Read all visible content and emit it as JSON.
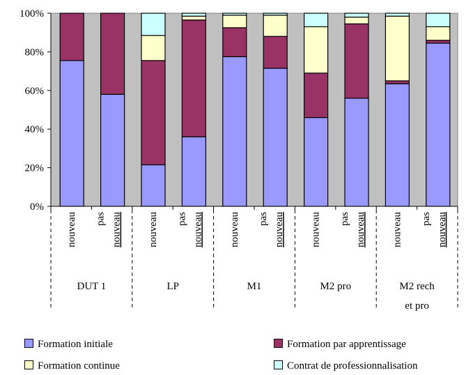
{
  "chart_data": {
    "type": "bar",
    "stacked": true,
    "title": "",
    "ylim": [
      0,
      100
    ],
    "y_ticks": [
      "0%",
      "20%",
      "40%",
      "60%",
      "80%",
      "100%"
    ],
    "plot_background": "#c0c0c0",
    "grid": false,
    "legend_position": "bottom",
    "categories": [
      {
        "group": "DUT 1",
        "sub": "nouveau"
      },
      {
        "group": "DUT 1",
        "sub": "pas nouveau"
      },
      {
        "group": "LP",
        "sub": "nouveau"
      },
      {
        "group": "LP",
        "sub": "pas nouveau"
      },
      {
        "group": "M1",
        "sub": "nouveau"
      },
      {
        "group": "M1",
        "sub": "pas nouveau"
      },
      {
        "group": "M2 pro",
        "sub": "nouveau"
      },
      {
        "group": "M2 pro",
        "sub": "pas nouveau"
      },
      {
        "group": "M2 rech et pro",
        "sub": "nouveau"
      },
      {
        "group": "M2 rech et pro",
        "sub": "pas nouveau"
      }
    ],
    "groups": [
      {
        "label_lines": [
          "DUT 1"
        ]
      },
      {
        "label_lines": [
          "LP"
        ]
      },
      {
        "label_lines": [
          "M1"
        ]
      },
      {
        "label_lines": [
          "M2 pro"
        ]
      },
      {
        "label_lines": [
          "M2 rech",
          "et pro"
        ]
      }
    ],
    "sub_labels": {
      "nouveau": "nouveau",
      "pas": "pas",
      "pas_nouveau_word": "nouveau"
    },
    "series": [
      {
        "name": "Formation initiale",
        "color": "#9999ff",
        "values": [
          75.5,
          58,
          21.5,
          36,
          77.5,
          71.5,
          46,
          56,
          63.5,
          84.5
        ]
      },
      {
        "name": "Formation par apprentissage",
        "color": "#993366",
        "values": [
          24.5,
          42,
          54,
          60.5,
          15,
          16.5,
          23,
          38.5,
          1.5,
          1.5
        ]
      },
      {
        "name": "Formation continue",
        "color": "#ffffcc",
        "values": [
          0,
          0,
          13,
          2,
          6.5,
          11,
          24,
          3.5,
          33.5,
          7
        ]
      },
      {
        "name": "Contrat de professionnalisation",
        "color": "#ccffff",
        "values": [
          0,
          0,
          11.5,
          1.5,
          1,
          1,
          7,
          2,
          1.5,
          7
        ]
      }
    ]
  }
}
